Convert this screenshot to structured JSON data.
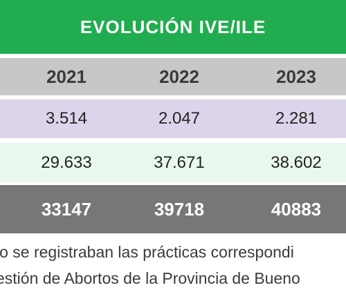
{
  "table": {
    "title": "EVOLUCIÓN IVE/ILE",
    "header": [
      "2021",
      "2022",
      "2023"
    ],
    "rows": [
      {
        "values": [
          "3.514",
          "2.047",
          "2.281"
        ]
      },
      {
        "values": [
          "29.633",
          "37.671",
          "38.602"
        ]
      }
    ],
    "totals": [
      "33147",
      "39718",
      "40883"
    ]
  },
  "notes": [
    "lo se registraban las prácticas correspondi",
    "estión de Abortos de la Provincia de Bueno"
  ],
  "colors": {
    "title_bg": "#21ad4f",
    "header_bg": "#c7c7c7",
    "row1_bg": "#dcd4ea",
    "row2_bg": "#e9f8ef",
    "total_bg": "#777777"
  }
}
